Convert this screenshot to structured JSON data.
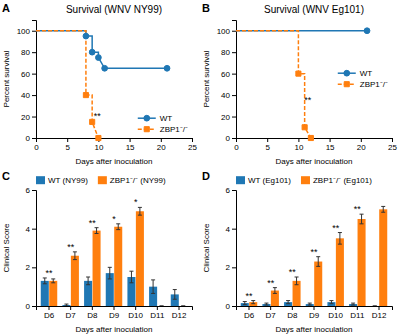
{
  "chart_data": [
    {
      "type": "line",
      "title": "Survival (WNV NY99)",
      "xlabel": "Days after inoculation",
      "ylabel": "Percent survival",
      "xlim": [
        0,
        25
      ],
      "ylim": [
        0,
        110
      ],
      "xticks": [
        0,
        5,
        10,
        15,
        20,
        25
      ],
      "yticks": [
        0,
        20,
        40,
        60,
        80,
        100
      ],
      "legend": "bottom-right",
      "series": [
        {
          "name": "WT",
          "x": [
            0,
            8,
            8,
            9,
            9,
            10,
            10,
            11,
            21
          ],
          "values": [
            100,
            100,
            95,
            95,
            80,
            80,
            75,
            65,
            65
          ],
          "line_style": "solid"
        },
        {
          "type": "scatter",
          "marker": "circle",
          "x": [
            8,
            9,
            10,
            11,
            21
          ],
          "values": [
            95,
            80,
            75,
            65,
            65
          ]
        },
        {
          "name": "ZBP1⁻/⁻",
          "x": [
            0,
            8,
            8,
            9,
            9,
            10
          ],
          "values": [
            100,
            100,
            40,
            40,
            15,
            0
          ],
          "line_style": "dashed"
        },
        {
          "type": "scatter",
          "marker": "square",
          "x": [
            8,
            9,
            10
          ],
          "values": [
            40,
            15,
            0
          ]
        }
      ],
      "annotations": [
        {
          "text": "A"
        },
        {
          "text": "**",
          "x": 9.8,
          "y": 18
        }
      ]
    },
    {
      "type": "line",
      "title": "Survival (WNV Eg101)",
      "xlabel": "Days after inoculation",
      "ylabel": "Percent survival",
      "xlim": [
        0,
        25
      ],
      "ylim": [
        0,
        110
      ],
      "xticks": [
        0,
        5,
        10,
        15,
        20,
        25
      ],
      "yticks": [
        0,
        20,
        40,
        60,
        80,
        100
      ],
      "legend": "right",
      "series": [
        {
          "name": "WT",
          "x": [
            0,
            21
          ],
          "values": [
            100,
            100
          ],
          "line_style": "solid"
        },
        {
          "type": "scatter",
          "marker": "circle",
          "x": [
            21
          ],
          "values": [
            100
          ]
        },
        {
          "name": "ZBP1⁻/⁻",
          "x": [
            0,
            10,
            10,
            11,
            11,
            12
          ],
          "values": [
            100,
            100,
            60,
            60,
            10,
            0
          ],
          "line_style": "dashed"
        },
        {
          "type": "scatter",
          "marker": "square",
          "x": [
            10,
            11,
            12
          ],
          "values": [
            60,
            10,
            0
          ]
        }
      ],
      "annotations": [
        {
          "text": "B"
        },
        {
          "text": "**",
          "x": 11.5,
          "y": 33
        }
      ]
    },
    {
      "type": "bar",
      "xlabel": "Days after inoculation",
      "ylabel": "Clinical Score",
      "categories": [
        "D6",
        "D7",
        "D8",
        "D9",
        "D10",
        "D11",
        "D12"
      ],
      "ylim": [
        0,
        6
      ],
      "yticks": [
        0,
        2,
        4,
        6
      ],
      "legend": "top-left",
      "series": [
        {
          "name": "WT (NY99)",
          "values": [
            1.3,
            0.05,
            1.3,
            1.7,
            1.5,
            1.0,
            0.6
          ],
          "errors": [
            0.15,
            0.05,
            0.2,
            0.3,
            0.3,
            0.35,
            0.25
          ]
        },
        {
          "name": "ZBP1⁻/⁻ (NY99)",
          "values": [
            1.3,
            2.6,
            3.9,
            4.1,
            4.9,
            0,
            0
          ],
          "errors": [
            0.1,
            0.2,
            0.15,
            0.15,
            0.2,
            0,
            0
          ]
        }
      ],
      "annotations": [
        {
          "text": "C"
        },
        {
          "text": "**",
          "x": "D6"
        },
        {
          "text": "**",
          "x": "D7"
        },
        {
          "text": "**",
          "x": "D8"
        },
        {
          "text": "*",
          "x": "D9"
        },
        {
          "text": "*",
          "x": "D10"
        }
      ]
    },
    {
      "type": "bar",
      "xlabel": "Days after inoculation",
      "ylabel": "Clinical Score",
      "categories": [
        "D6",
        "D7",
        "D8",
        "D9",
        "D10",
        "D11",
        "D12"
      ],
      "ylim": [
        0,
        6
      ],
      "yticks": [
        0,
        2,
        4,
        6
      ],
      "legend": "top-left",
      "series": [
        {
          "name": "WT (Eg101)",
          "values": [
            0.15,
            0.1,
            0.2,
            0.1,
            0.2,
            0.1,
            0.0
          ],
          "errors": [
            0.08,
            0.05,
            0.08,
            0.05,
            0.08,
            0.05,
            0.0
          ]
        },
        {
          "name": "ZBP1⁻/⁻ (Eg101)",
          "values": [
            0.2,
            0.8,
            1.3,
            2.3,
            3.5,
            4.5,
            5.0
          ],
          "errors": [
            0.08,
            0.15,
            0.2,
            0.25,
            0.3,
            0.25,
            0.15
          ]
        }
      ],
      "annotations": [
        {
          "text": "D"
        },
        {
          "text": "**",
          "x": "D6"
        },
        {
          "text": "**",
          "x": "D7"
        },
        {
          "text": "**",
          "x": "D8"
        },
        {
          "text": "**",
          "x": "D9"
        },
        {
          "text": "**",
          "x": "D10"
        },
        {
          "text": "**",
          "x": "D11"
        }
      ]
    }
  ]
}
